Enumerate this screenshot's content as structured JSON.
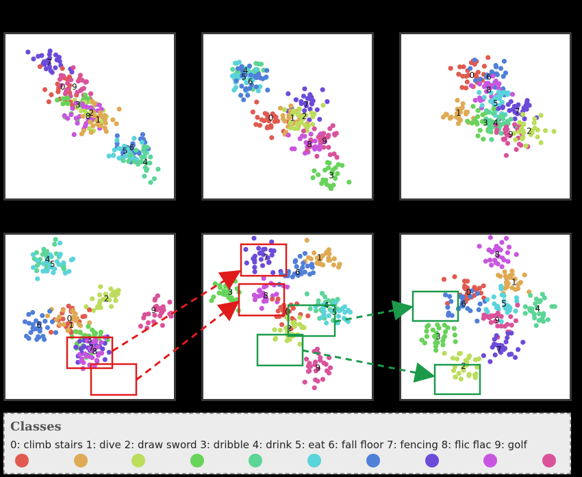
{
  "legend": {
    "title": "Classes",
    "text": "0: climb stairs 1: dive    2: draw sword 3: dribble 4: drink 5: eat    6: fall floor    7: fencing    8: flic flac  9: golf"
  },
  "chart_data": {
    "type": "scatter",
    "description_hint": "t-SNE feature embeddings, 6 panels, 10 classes",
    "classes": [
      {
        "id": 0,
        "name": "climb stairs",
        "color": "#e05a4f"
      },
      {
        "id": 1,
        "name": "dive",
        "color": "#dfaa55"
      },
      {
        "id": 2,
        "name": "draw sword",
        "color": "#bcdd5c"
      },
      {
        "id": 3,
        "name": "dribble",
        "color": "#67d35a"
      },
      {
        "id": 4,
        "name": "drink",
        "color": "#5cd596"
      },
      {
        "id": 5,
        "name": "eat",
        "color": "#5bd3da"
      },
      {
        "id": 6,
        "name": "fall floor",
        "color": "#4f7fd9"
      },
      {
        "id": 7,
        "name": "fencing",
        "color": "#6c4bd9"
      },
      {
        "id": 8,
        "name": "flic flac",
        "color": "#c856df"
      },
      {
        "id": 9,
        "name": "golf",
        "color": "#d9529a"
      }
    ],
    "panels": [
      {
        "labels": [
          [
            "7",
            0.26,
            0.17
          ],
          [
            "0",
            0.34,
            0.32
          ],
          [
            "9",
            0.41,
            0.32
          ],
          [
            "3",
            0.43,
            0.43
          ],
          [
            "2",
            0.51,
            0.48
          ],
          [
            "8",
            0.49,
            0.5
          ],
          [
            "1",
            0.55,
            0.52
          ],
          [
            "6",
            0.75,
            0.69
          ],
          [
            "5",
            0.71,
            0.71
          ],
          [
            "4",
            0.83,
            0.78
          ]
        ]
      },
      {
        "labels": [
          [
            "4",
            0.25,
            0.22
          ],
          [
            "5",
            0.24,
            0.26
          ],
          [
            "6",
            0.28,
            0.29
          ],
          [
            "7",
            0.61,
            0.43
          ],
          [
            "0",
            0.4,
            0.51
          ],
          [
            "1",
            0.53,
            0.51
          ],
          [
            "2",
            0.6,
            0.5
          ],
          [
            "8",
            0.63,
            0.67
          ],
          [
            "9",
            0.72,
            0.65
          ],
          [
            "3",
            0.76,
            0.86
          ]
        ]
      },
      {
        "labels": [
          [
            "0",
            0.42,
            0.25
          ],
          [
            "6",
            0.52,
            0.26
          ],
          [
            "8",
            0.52,
            0.34
          ],
          [
            "5",
            0.56,
            0.42
          ],
          [
            "7",
            0.69,
            0.47
          ],
          [
            "1",
            0.34,
            0.48
          ],
          [
            "3",
            0.5,
            0.54
          ],
          [
            "4",
            0.56,
            0.54
          ],
          [
            "9",
            0.65,
            0.61
          ],
          [
            "2",
            0.76,
            0.59
          ]
        ]
      },
      {
        "labels": [
          [
            "4",
            0.25,
            0.15
          ],
          [
            "5",
            0.28,
            0.18
          ],
          [
            "2",
            0.6,
            0.39
          ],
          [
            "9",
            0.88,
            0.46
          ],
          [
            "0",
            0.38,
            0.51
          ],
          [
            "1",
            0.39,
            0.55
          ],
          [
            "6",
            0.2,
            0.55
          ],
          [
            "3",
            0.5,
            0.64
          ],
          [
            "7",
            0.51,
            0.69
          ],
          [
            "8",
            0.53,
            0.71
          ]
        ]
      },
      {
        "labels": [
          [
            "7",
            0.37,
            0.14
          ],
          [
            "1",
            0.69,
            0.14
          ],
          [
            "6",
            0.56,
            0.23
          ],
          [
            "3",
            0.16,
            0.35
          ],
          [
            "8",
            0.37,
            0.37
          ],
          [
            "0",
            0.5,
            0.47
          ],
          [
            "4",
            0.73,
            0.43
          ],
          [
            "5",
            0.78,
            0.47
          ],
          [
            "2",
            0.51,
            0.57
          ],
          [
            "9",
            0.68,
            0.81
          ]
        ]
      },
      {
        "labels": [
          [
            "8",
            0.57,
            0.12
          ],
          [
            "1",
            0.67,
            0.29
          ],
          [
            "0",
            0.4,
            0.35
          ],
          [
            "6",
            0.37,
            0.42
          ],
          [
            "5",
            0.61,
            0.42
          ],
          [
            "4",
            0.81,
            0.45
          ],
          [
            "9",
            0.57,
            0.52
          ],
          [
            "3",
            0.22,
            0.62
          ],
          [
            "7",
            0.58,
            0.7
          ],
          [
            "2",
            0.37,
            0.8
          ]
        ]
      }
    ]
  }
}
